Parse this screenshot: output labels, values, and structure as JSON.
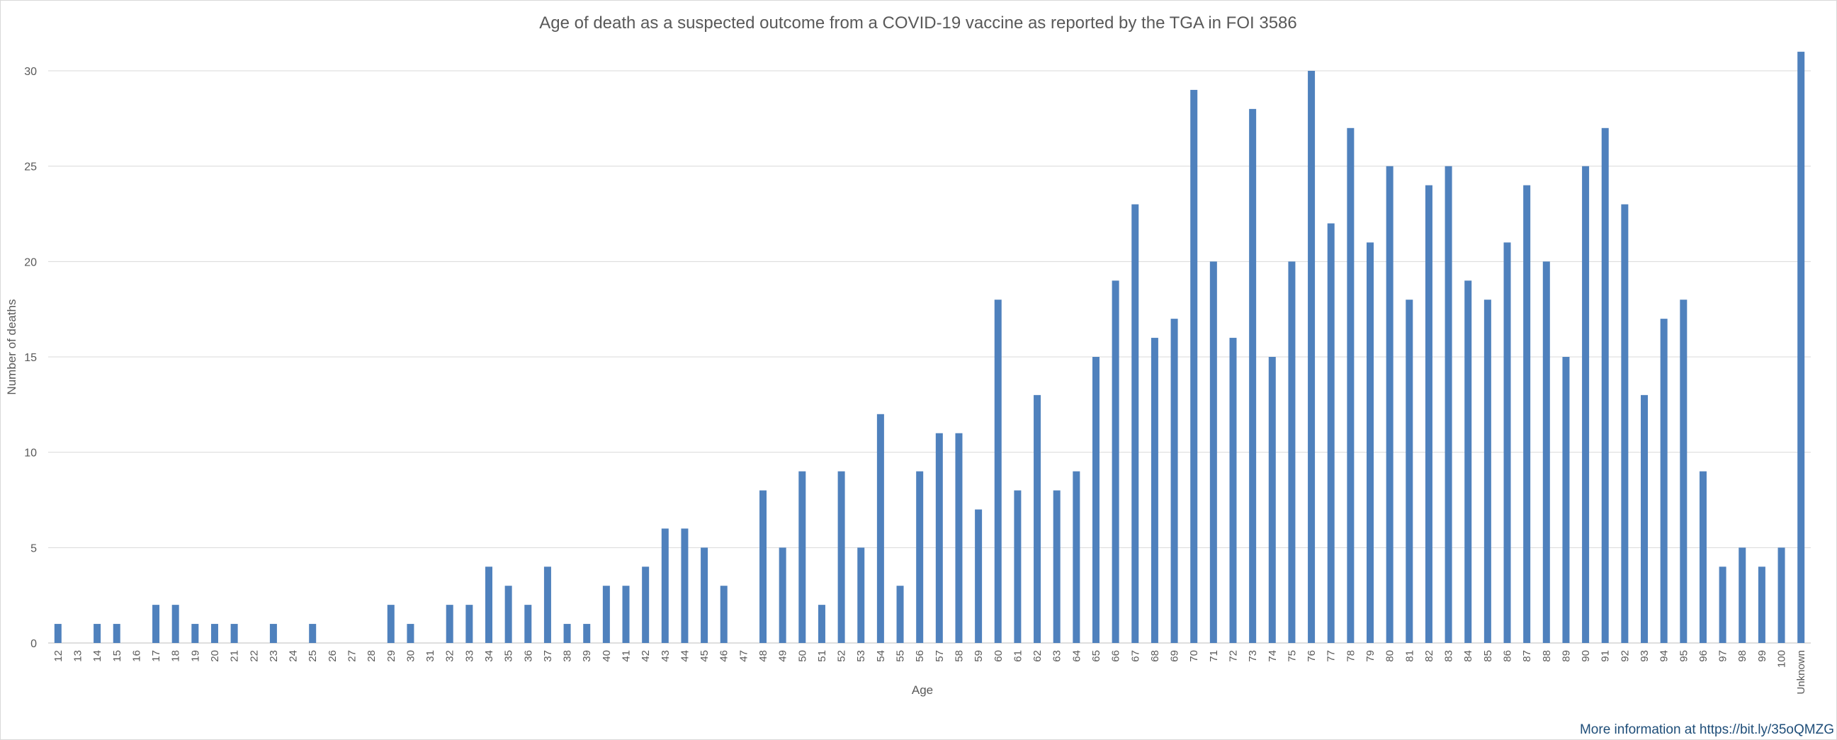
{
  "footer": {
    "text": "More information at https://bit.ly/35oQMZG"
  },
  "colors": {
    "bar": "#4f81bd",
    "grid": "#d9d9d9",
    "text": "#595959",
    "footer": "#1f4e79"
  },
  "chart_data": {
    "type": "bar",
    "title": "Age of death as a suspected outcome from a COVID-19 vaccine as reported by the TGA in FOI 3586",
    "xlabel": "Age",
    "ylabel": "Number of deaths",
    "ylim": [
      0,
      30
    ],
    "yticks": [
      0,
      5,
      10,
      15,
      20,
      25,
      30
    ],
    "grid": true,
    "legend": "none",
    "categories": [
      "12",
      "13",
      "14",
      "15",
      "16",
      "17",
      "18",
      "19",
      "20",
      "21",
      "22",
      "23",
      "24",
      "25",
      "26",
      "27",
      "28",
      "29",
      "30",
      "31",
      "32",
      "33",
      "34",
      "35",
      "36",
      "37",
      "38",
      "39",
      "40",
      "41",
      "42",
      "43",
      "44",
      "45",
      "46",
      "47",
      "48",
      "49",
      "50",
      "51",
      "52",
      "53",
      "54",
      "55",
      "56",
      "57",
      "58",
      "59",
      "60",
      "61",
      "62",
      "63",
      "64",
      "65",
      "66",
      "67",
      "68",
      "69",
      "70",
      "71",
      "72",
      "73",
      "74",
      "75",
      "76",
      "77",
      "78",
      "79",
      "80",
      "81",
      "82",
      "83",
      "84",
      "85",
      "86",
      "87",
      "88",
      "89",
      "90",
      "91",
      "92",
      "93",
      "94",
      "95",
      "96",
      "97",
      "98",
      "99",
      "100",
      "Unknown"
    ],
    "values": [
      1,
      0,
      1,
      1,
      0,
      2,
      2,
      1,
      1,
      1,
      0,
      1,
      0,
      1,
      0,
      0,
      0,
      2,
      1,
      0,
      2,
      2,
      4,
      3,
      2,
      4,
      1,
      1,
      3,
      3,
      4,
      6,
      6,
      5,
      3,
      0,
      8,
      5,
      9,
      2,
      9,
      5,
      12,
      3,
      9,
      11,
      11,
      7,
      18,
      8,
      13,
      8,
      9,
      15,
      19,
      23,
      16,
      17,
      29,
      20,
      16,
      28,
      15,
      20,
      30,
      22,
      27,
      21,
      25,
      18,
      24,
      25,
      19,
      18,
      21,
      24,
      20,
      15,
      25,
      27,
      23,
      13,
      17,
      18,
      9,
      4,
      5,
      4,
      5,
      31
    ]
  }
}
